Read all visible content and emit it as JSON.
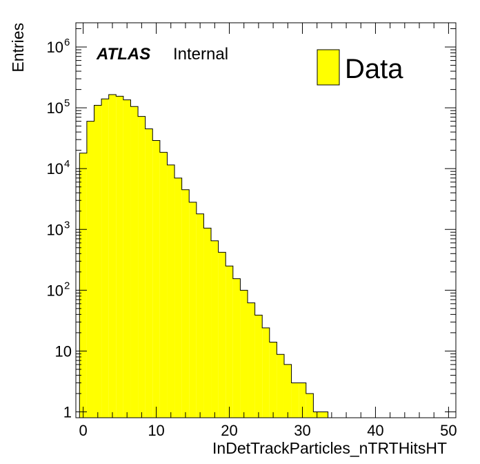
{
  "chart_data": {
    "type": "histogram",
    "title": "",
    "xlabel": "InDetTrackParticles_nTRTHitsHT",
    "ylabel": "Entries",
    "x_range": [
      -1,
      51
    ],
    "y_range": [
      0.8,
      2500000
    ],
    "y_scale": "log",
    "bin_width": 1,
    "bin_start": -0.5,
    "fill_color": "#ffff00",
    "line_color": "#000000",
    "legend": {
      "label": "Data",
      "position": "top-right"
    },
    "label_text": {
      "experiment": "ATLAS",
      "status": "Internal"
    },
    "x_ticks": [
      "0",
      "10",
      "20",
      "30",
      "40",
      "50"
    ],
    "y_ticks": [
      {
        "base": "1",
        "exp": ""
      },
      {
        "base": "10",
        "exp": ""
      },
      {
        "base": "10",
        "exp": "2"
      },
      {
        "base": "10",
        "exp": "3"
      },
      {
        "base": "10",
        "exp": "4"
      },
      {
        "base": "10",
        "exp": "5"
      },
      {
        "base": "10",
        "exp": "6"
      }
    ],
    "bins": [
      {
        "center": 0,
        "value": 18000
      },
      {
        "center": 1,
        "value": 60000
      },
      {
        "center": 2,
        "value": 110000
      },
      {
        "center": 3,
        "value": 140000
      },
      {
        "center": 4,
        "value": 165000
      },
      {
        "center": 5,
        "value": 155000
      },
      {
        "center": 6,
        "value": 135000
      },
      {
        "center": 7,
        "value": 105000
      },
      {
        "center": 8,
        "value": 72000
      },
      {
        "center": 9,
        "value": 45000
      },
      {
        "center": 10,
        "value": 29000
      },
      {
        "center": 11,
        "value": 18500
      },
      {
        "center": 12,
        "value": 11500
      },
      {
        "center": 13,
        "value": 7000
      },
      {
        "center": 14,
        "value": 4500
      },
      {
        "center": 15,
        "value": 2800
      },
      {
        "center": 16,
        "value": 1800
      },
      {
        "center": 17,
        "value": 1050
      },
      {
        "center": 18,
        "value": 650
      },
      {
        "center": 19,
        "value": 420
      },
      {
        "center": 20,
        "value": 250
      },
      {
        "center": 21,
        "value": 155
      },
      {
        "center": 22,
        "value": 100
      },
      {
        "center": 23,
        "value": 62
      },
      {
        "center": 24,
        "value": 39
      },
      {
        "center": 25,
        "value": 24
      },
      {
        "center": 26,
        "value": 14
      },
      {
        "center": 27,
        "value": 8.8
      },
      {
        "center": 28,
        "value": 6
      },
      {
        "center": 29,
        "value": 3
      },
      {
        "center": 30,
        "value": 3
      },
      {
        "center": 31,
        "value": 2
      },
      {
        "center": 32,
        "value": 1
      },
      {
        "center": 33,
        "value": 1
      }
    ]
  }
}
